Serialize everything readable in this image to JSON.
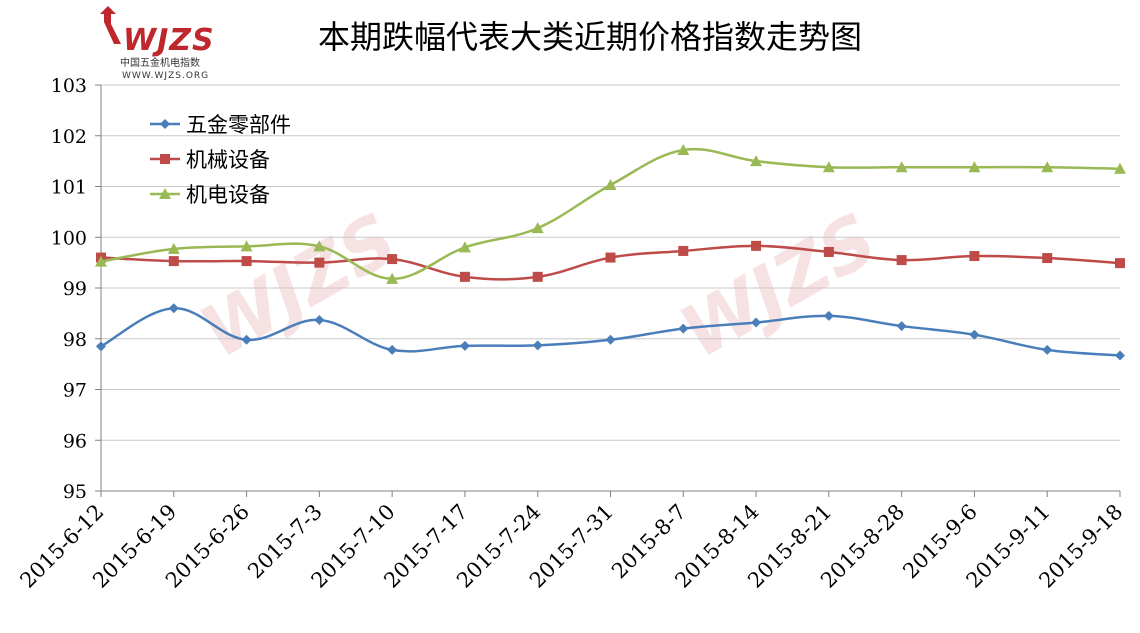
{
  "logo": {
    "brand": "WJZS",
    "name_cn": "中国五金机电指数",
    "url": "WWW.WJZS.ORG"
  },
  "chart_data": {
    "type": "line",
    "title": "本期跌幅代表大类近期价格指数走势图",
    "xlabel": "",
    "ylabel": "",
    "ylim": [
      95,
      103
    ],
    "yticks": [
      95,
      96,
      97,
      98,
      99,
      100,
      101,
      102,
      103
    ],
    "grid": true,
    "legend": "top-left",
    "categories": [
      "2015-6-12",
      "2015-6-19",
      "2015-6-26",
      "2015-7-3",
      "2015-7-10",
      "2015-7-17",
      "2015-7-24",
      "2015-7-31",
      "2015-8-7",
      "2015-8-14",
      "2015-8-21",
      "2015-8-28",
      "2015-9-6",
      "2015-9-11",
      "2015-9-18"
    ],
    "series": [
      {
        "name": "五金零部件",
        "color": "#4a7ebb",
        "marker": "diamond",
        "values": [
          97.85,
          98.6,
          97.98,
          98.37,
          97.78,
          97.86,
          97.87,
          97.98,
          98.2,
          98.32,
          98.45,
          98.25,
          98.08,
          97.78,
          97.67
        ]
      },
      {
        "name": "机械设备",
        "color": "#be4b48",
        "marker": "square",
        "values": [
          99.6,
          99.53,
          99.53,
          99.5,
          99.57,
          99.22,
          99.22,
          99.6,
          99.73,
          99.83,
          99.71,
          99.55,
          99.63,
          99.59,
          99.49
        ]
      },
      {
        "name": "机电设备",
        "color": "#98b954",
        "marker": "triangle",
        "values": [
          99.52,
          99.77,
          99.82,
          99.82,
          99.18,
          99.8,
          100.18,
          101.03,
          101.72,
          101.5,
          101.38,
          101.38,
          101.38,
          101.38,
          101.35
        ]
      }
    ]
  }
}
